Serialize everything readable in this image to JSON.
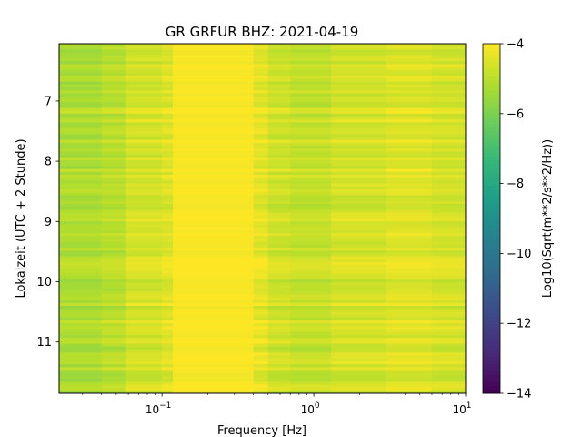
{
  "chart_data": {
    "type": "heatmap",
    "title": "GR GRFUR  BHZ: 2021-04-19",
    "xlabel": "Frequency [Hz]",
    "ylabel": "Lokalzeit (UTC + 2 Stunde)",
    "colorbar_label": "Log10(Sqrt(m**2/s**2/Hz))",
    "x_scale": "log",
    "xlim": [
      0.021,
      10
    ],
    "x_ticks": [
      {
        "value": 0.1,
        "label": "10",
        "exp": "−1"
      },
      {
        "value": 1,
        "label": "10",
        "exp": "0"
      },
      {
        "value": 10,
        "label": "10",
        "exp": "1"
      }
    ],
    "ylim": [
      6.05,
      11.85
    ],
    "y_inverted": true,
    "y_ticks": [
      {
        "value": 7,
        "label": "7"
      },
      {
        "value": 8,
        "label": "8"
      },
      {
        "value": 9,
        "label": "9"
      },
      {
        "value": 10,
        "label": "10"
      },
      {
        "value": 11,
        "label": "11"
      }
    ],
    "colorbar": {
      "colormap": "viridis",
      "range": [
        -14,
        -4
      ],
      "ticks": [
        {
          "value": -4,
          "label": "−4"
        },
        {
          "value": -6,
          "label": "−6"
        },
        {
          "value": -8,
          "label": "−8"
        },
        {
          "value": -10,
          "label": "−10"
        },
        {
          "value": -12,
          "label": "−12"
        },
        {
          "value": -14,
          "label": "−14"
        }
      ]
    },
    "frequency_bands": [
      {
        "f_min": 0.021,
        "f_max": 0.04,
        "value": -5.2
      },
      {
        "f_min": 0.04,
        "f_max": 0.058,
        "value": -5.0
      },
      {
        "f_min": 0.058,
        "f_max": 0.1,
        "value": -4.6
      },
      {
        "f_min": 0.1,
        "f_max": 0.118,
        "value": -4.45
      },
      {
        "f_min": 0.118,
        "f_max": 0.4,
        "value": -4.05
      },
      {
        "f_min": 0.4,
        "f_max": 0.5,
        "value": -4.35
      },
      {
        "f_min": 0.5,
        "f_max": 0.7,
        "value": -4.7
      },
      {
        "f_min": 0.7,
        "f_max": 1.3,
        "value": -4.85
      },
      {
        "f_min": 1.3,
        "f_max": 3.0,
        "value": -4.6
      },
      {
        "f_min": 3.0,
        "f_max": 6.0,
        "value": -4.45
      },
      {
        "f_min": 6.0,
        "f_max": 10.0,
        "value": -4.6
      }
    ]
  }
}
